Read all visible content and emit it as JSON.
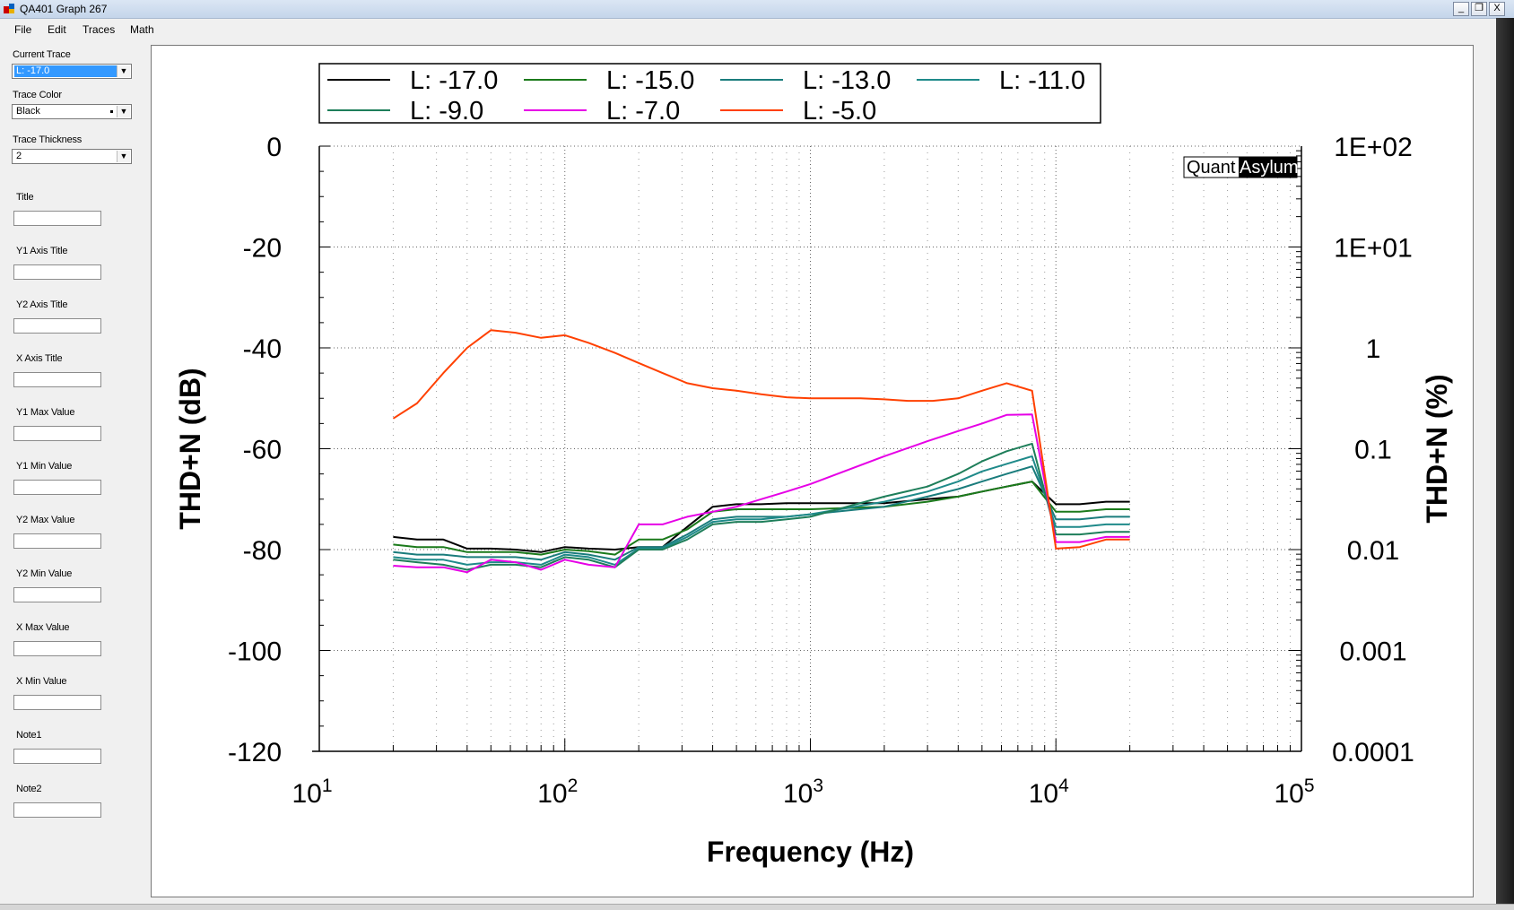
{
  "window": {
    "title": "QA401 Graph 267",
    "controls": [
      "_",
      "❐",
      "X"
    ]
  },
  "menu": [
    "File",
    "Edit",
    "Traces",
    "Math"
  ],
  "sidebar": {
    "current_trace": {
      "label": "Current Trace",
      "value": "L: -17.0"
    },
    "trace_color": {
      "label": "Trace Color",
      "value": "Black"
    },
    "trace_thickness": {
      "label": "Trace Thickness",
      "value": "2"
    },
    "fields": [
      {
        "label": "Title",
        "value": ""
      },
      {
        "label": "Y1 Axis Title",
        "value": ""
      },
      {
        "label": "Y2 Axis Title",
        "value": ""
      },
      {
        "label": "X Axis Title",
        "value": ""
      },
      {
        "label": "Y1 Max Value",
        "value": ""
      },
      {
        "label": "Y1 Min Value",
        "value": ""
      },
      {
        "label": "Y2 Max Value",
        "value": ""
      },
      {
        "label": "Y2 Min Value",
        "value": ""
      },
      {
        "label": "X Max Value",
        "value": ""
      },
      {
        "label": "X Min Value",
        "value": ""
      },
      {
        "label": "Note1",
        "value": ""
      },
      {
        "label": "Note2",
        "value": ""
      }
    ]
  },
  "chart_data": {
    "type": "line",
    "xlabel": "Frequency (Hz)",
    "ylabel": "THD+N (dB)",
    "y2label": "THD+N (%)",
    "x_scale": "log",
    "xlim": [
      10,
      100000
    ],
    "ylim": [
      -120,
      0
    ],
    "x_ticks": [
      10,
      100,
      1000,
      10000,
      100000
    ],
    "y_ticks": [
      0,
      -20,
      -40,
      -60,
      -80,
      -100,
      -120
    ],
    "y2_ticks": [
      "1E+02",
      "1E+01",
      "1",
      "0.1",
      "0.01",
      "0.001",
      "0.0001"
    ],
    "grid": true,
    "legend_position": "top",
    "watermark": {
      "left": "Quant",
      "right": "Asylum"
    },
    "series": [
      {
        "name": "L: -17.0",
        "color": "#000000",
        "x": [
          20,
          25,
          32,
          40,
          50,
          63,
          80,
          100,
          125,
          160,
          200,
          250,
          315,
          400,
          500,
          630,
          800,
          1000,
          2000,
          3000,
          4000,
          5000,
          6300,
          8000,
          10000,
          12500,
          16000,
          20000
        ],
        "y": [
          -77.5,
          -78,
          -78,
          -79.8,
          -79.8,
          -80,
          -80.5,
          -79.5,
          -79.8,
          -80,
          -79.5,
          -79.5,
          -75.5,
          -71.5,
          -71,
          -71,
          -70.8,
          -70.8,
          -70.8,
          -70,
          -69.5,
          -68.5,
          -67.5,
          -66.5,
          -71,
          -71,
          -70.5,
          -70.5
        ]
      },
      {
        "name": "L: -15.0",
        "color": "#1b7a1b",
        "x": [
          20,
          25,
          32,
          40,
          50,
          63,
          80,
          100,
          125,
          160,
          200,
          250,
          315,
          400,
          500,
          630,
          800,
          1000,
          2000,
          3000,
          4000,
          5000,
          6300,
          8000,
          10000,
          12500,
          16000,
          20000
        ],
        "y": [
          -79,
          -79.5,
          -79.5,
          -80.5,
          -80.5,
          -80.5,
          -81,
          -80,
          -80.3,
          -81,
          -78,
          -78,
          -76,
          -72.5,
          -72,
          -72,
          -72,
          -72,
          -71.5,
          -70.5,
          -69.5,
          -68.5,
          -67.5,
          -66.5,
          -72.5,
          -72.5,
          -72,
          -72
        ]
      },
      {
        "name": "L: -13.0",
        "color": "#1a7c7c",
        "x": [
          20,
          25,
          32,
          40,
          50,
          63,
          80,
          100,
          125,
          160,
          200,
          250,
          315,
          400,
          500,
          630,
          800,
          1000,
          2000,
          3000,
          4000,
          5000,
          6300,
          8000,
          10000,
          12500,
          16000,
          20000
        ],
        "y": [
          -80.5,
          -81,
          -81,
          -81.5,
          -81.5,
          -81.5,
          -82,
          -80.5,
          -81,
          -82,
          -79.5,
          -79.5,
          -77,
          -74,
          -73.5,
          -73.5,
          -73.5,
          -73,
          -71.5,
          -69.5,
          -68,
          -66.5,
          -65,
          -63.5,
          -74,
          -74,
          -73.5,
          -73.5
        ]
      },
      {
        "name": "L: -11.0",
        "color": "#1f8a8a",
        "x": [
          20,
          25,
          32,
          40,
          50,
          63,
          80,
          100,
          125,
          160,
          200,
          250,
          315,
          400,
          500,
          630,
          800,
          1000,
          2000,
          3000,
          4000,
          5000,
          6300,
          8000,
          10000,
          12500,
          16000,
          20000
        ],
        "y": [
          -81.5,
          -82,
          -82,
          -83,
          -82.5,
          -82.5,
          -83,
          -81,
          -81.5,
          -83,
          -79.8,
          -79.8,
          -77.5,
          -74.5,
          -74,
          -74,
          -73.5,
          -73,
          -70.5,
          -68.5,
          -66.5,
          -64.5,
          -63,
          -61.5,
          -75.5,
          -75.5,
          -75,
          -75
        ]
      },
      {
        "name": "L: -9.0",
        "color": "#1e7e5a",
        "x": [
          20,
          25,
          32,
          40,
          50,
          63,
          80,
          100,
          125,
          160,
          200,
          250,
          315,
          400,
          500,
          630,
          800,
          1000,
          2000,
          3000,
          4000,
          5000,
          6300,
          8000,
          10000,
          12500,
          16000,
          20000
        ],
        "y": [
          -82,
          -82.5,
          -83,
          -84,
          -83,
          -83,
          -83.5,
          -81.5,
          -82,
          -83.5,
          -80,
          -80,
          -78,
          -75,
          -74.5,
          -74.5,
          -74,
          -73.5,
          -69.5,
          -67.5,
          -65,
          -62.5,
          -60.5,
          -59,
          -77,
          -77,
          -76.5,
          -76.5
        ]
      },
      {
        "name": "L: -7.0",
        "color": "#e600e6",
        "x": [
          20,
          25,
          32,
          40,
          50,
          63,
          80,
          100,
          125,
          160,
          200,
          250,
          315,
          400,
          500,
          630,
          800,
          1000,
          2000,
          3000,
          4000,
          5000,
          6300,
          8000,
          10000,
          12500,
          16000,
          20000
        ],
        "y": [
          -83.2,
          -83.5,
          -83.5,
          -84.5,
          -82,
          -82.5,
          -84,
          -82,
          -83,
          -83.5,
          -75,
          -75,
          -73.5,
          -72.5,
          -71.5,
          -70,
          -68.5,
          -67,
          -61.5,
          -58.5,
          -56.5,
          -55,
          -53.3,
          -53.2,
          -78.5,
          -78.5,
          -77.5,
          -77.5
        ]
      },
      {
        "name": "L: -5.0",
        "color": "#ff4000",
        "x": [
          20,
          25,
          32,
          40,
          50,
          63,
          80,
          100,
          125,
          160,
          200,
          250,
          315,
          400,
          500,
          630,
          800,
          1000,
          1250,
          1600,
          2000,
          2500,
          3150,
          4000,
          5000,
          6300,
          8000,
          10000,
          12500,
          16000,
          20000
        ],
        "y": [
          -54,
          -51,
          -45,
          -40,
          -36.5,
          -37,
          -38,
          -37.5,
          -39,
          -41,
          -43,
          -45,
          -47,
          -48,
          -48.5,
          -49.2,
          -49.8,
          -50,
          -50,
          -50,
          -50.2,
          -50.5,
          -50.5,
          -50,
          -48.5,
          -47,
          -48.5,
          -79.8,
          -79.5,
          -78,
          -78
        ]
      }
    ]
  }
}
